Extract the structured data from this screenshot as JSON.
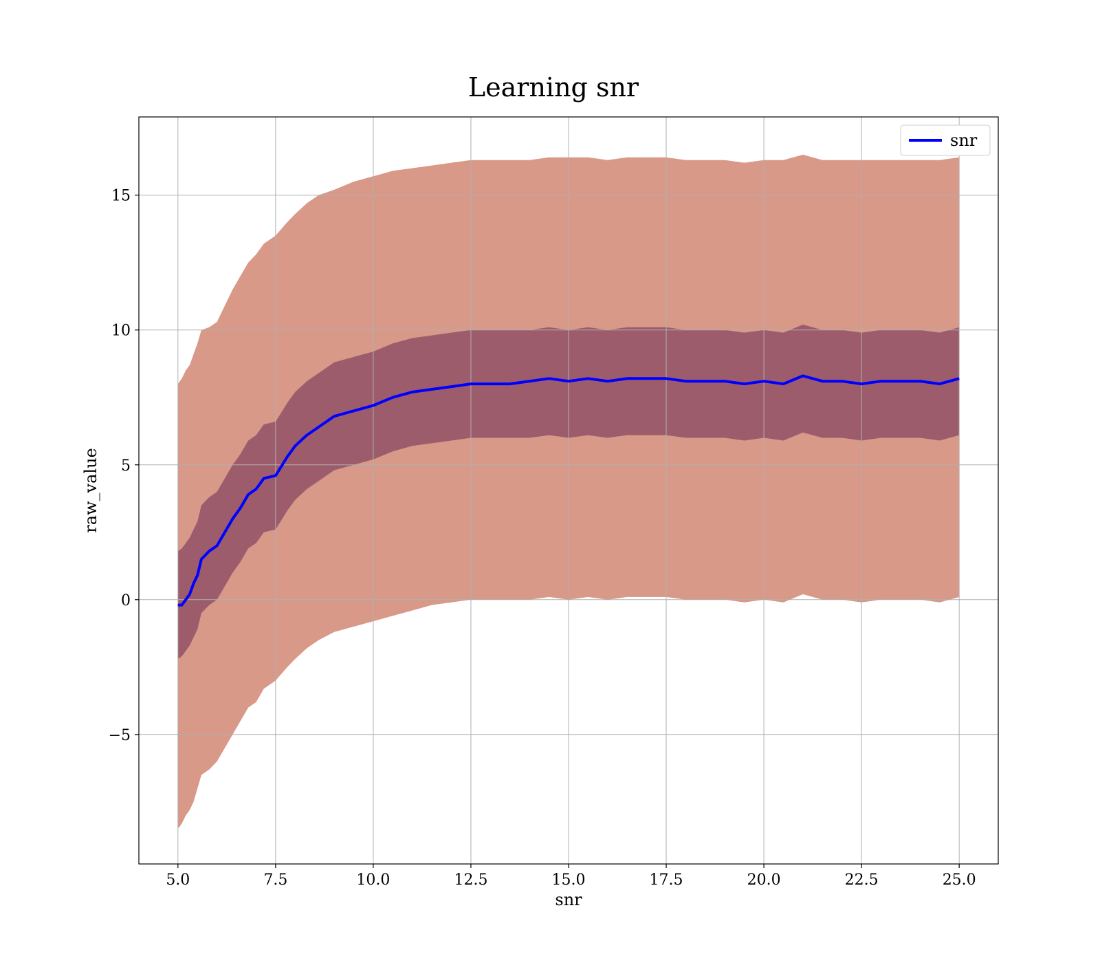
{
  "chart_data": {
    "type": "line",
    "title": "Learning snr",
    "xlabel": "snr",
    "ylabel": "raw_value",
    "xlim": [
      4.0,
      26.0
    ],
    "ylim": [
      -9.8,
      17.9
    ],
    "xticks": [
      5.0,
      7.5,
      10.0,
      12.5,
      15.0,
      17.5,
      20.0,
      22.5,
      25.0
    ],
    "xtick_labels": [
      "5.0",
      "7.5",
      "10.0",
      "12.5",
      "15.0",
      "17.5",
      "20.0",
      "22.5",
      "25.0"
    ],
    "yticks": [
      -5,
      0,
      5,
      10,
      15
    ],
    "ytick_labels": [
      "−5",
      "0",
      "5",
      "10",
      "15"
    ],
    "grid": true,
    "legend": {
      "position": "top-right",
      "entries": [
        "snr"
      ]
    },
    "series": [
      {
        "name": "snr",
        "color": "#0000ff",
        "x": [
          5.0,
          5.1,
          5.2,
          5.3,
          5.4,
          5.5,
          5.6,
          5.8,
          6.0,
          6.2,
          6.4,
          6.6,
          6.8,
          7.0,
          7.2,
          7.5,
          7.8,
          8.0,
          8.3,
          8.6,
          9.0,
          9.5,
          10.0,
          10.5,
          11.0,
          11.5,
          12.0,
          12.5,
          13.0,
          13.5,
          14.0,
          14.5,
          15.0,
          15.5,
          16.0,
          16.5,
          17.0,
          17.5,
          18.0,
          18.5,
          19.0,
          19.5,
          20.0,
          20.5,
          21.0,
          21.5,
          22.0,
          22.5,
          23.0,
          23.5,
          24.0,
          24.5,
          25.0
        ],
        "values": [
          -0.2,
          -0.2,
          0.0,
          0.2,
          0.6,
          0.9,
          1.5,
          1.8,
          2.0,
          2.5,
          3.0,
          3.4,
          3.9,
          4.1,
          4.5,
          4.6,
          5.3,
          5.7,
          6.1,
          6.4,
          6.8,
          7.0,
          7.2,
          7.5,
          7.7,
          7.8,
          7.9,
          8.0,
          8.0,
          8.0,
          8.1,
          8.2,
          8.1,
          8.2,
          8.1,
          8.2,
          8.2,
          8.2,
          8.1,
          8.1,
          8.1,
          8.0,
          8.1,
          8.0,
          8.3,
          8.1,
          8.1,
          8.0,
          8.1,
          8.1,
          8.1,
          8.0,
          8.2
        ]
      }
    ],
    "bands": [
      {
        "kind": "outer",
        "color": "#ff9999",
        "x": [
          5.0,
          5.1,
          5.2,
          5.3,
          5.4,
          5.5,
          5.6,
          5.8,
          6.0,
          6.2,
          6.4,
          6.6,
          6.8,
          7.0,
          7.2,
          7.5,
          7.8,
          8.0,
          8.3,
          8.6,
          9.0,
          9.5,
          10.0,
          10.5,
          11.0,
          11.5,
          12.0,
          12.5,
          13.0,
          13.5,
          14.0,
          14.5,
          15.0,
          15.5,
          16.0,
          16.5,
          17.0,
          17.5,
          18.0,
          18.5,
          19.0,
          19.5,
          20.0,
          20.5,
          21.0,
          21.5,
          22.0,
          22.5,
          23.0,
          23.5,
          24.0,
          24.5,
          25.0
        ],
        "upper": [
          8.0,
          8.2,
          8.5,
          8.7,
          9.1,
          9.5,
          10.0,
          10.1,
          10.3,
          10.9,
          11.5,
          12.0,
          12.5,
          12.8,
          13.2,
          13.5,
          14.0,
          14.3,
          14.7,
          15.0,
          15.2,
          15.5,
          15.7,
          15.9,
          16.0,
          16.1,
          16.2,
          16.3,
          16.3,
          16.3,
          16.3,
          16.4,
          16.4,
          16.4,
          16.3,
          16.4,
          16.4,
          16.4,
          16.3,
          16.3,
          16.3,
          16.2,
          16.3,
          16.3,
          16.5,
          16.3,
          16.3,
          16.3,
          16.3,
          16.3,
          16.3,
          16.3,
          16.4
        ],
        "lower": [
          -8.5,
          -8.3,
          -8.0,
          -7.8,
          -7.5,
          -7.0,
          -6.5,
          -6.3,
          -6.0,
          -5.5,
          -5.0,
          -4.5,
          -4.0,
          -3.8,
          -3.3,
          -3.0,
          -2.5,
          -2.2,
          -1.8,
          -1.5,
          -1.2,
          -1.0,
          -0.8,
          -0.6,
          -0.4,
          -0.2,
          -0.1,
          0.0,
          0.0,
          0.0,
          0.0,
          0.1,
          0.0,
          0.1,
          0.0,
          0.1,
          0.1,
          0.1,
          0.0,
          0.0,
          0.0,
          -0.1,
          0.0,
          -0.1,
          0.2,
          0.0,
          0.0,
          -0.1,
          0.0,
          0.0,
          0.0,
          -0.1,
          0.1
        ]
      },
      {
        "kind": "inner",
        "color": "#6b2a55",
        "x": [
          5.0,
          5.1,
          5.2,
          5.3,
          5.4,
          5.5,
          5.6,
          5.8,
          6.0,
          6.2,
          6.4,
          6.6,
          6.8,
          7.0,
          7.2,
          7.5,
          7.8,
          8.0,
          8.3,
          8.6,
          9.0,
          9.5,
          10.0,
          10.5,
          11.0,
          11.5,
          12.0,
          12.5,
          13.0,
          13.5,
          14.0,
          14.5,
          15.0,
          15.5,
          16.0,
          16.5,
          17.0,
          17.5,
          18.0,
          18.5,
          19.0,
          19.5,
          20.0,
          20.5,
          21.0,
          21.5,
          22.0,
          22.5,
          23.0,
          23.5,
          24.0,
          24.5,
          25.0
        ],
        "upper": [
          1.8,
          1.9,
          2.1,
          2.3,
          2.6,
          2.9,
          3.5,
          3.8,
          4.0,
          4.5,
          5.0,
          5.4,
          5.9,
          6.1,
          6.5,
          6.6,
          7.3,
          7.7,
          8.1,
          8.4,
          8.8,
          9.0,
          9.2,
          9.5,
          9.7,
          9.8,
          9.9,
          10.0,
          10.0,
          10.0,
          10.0,
          10.1,
          10.0,
          10.1,
          10.0,
          10.1,
          10.1,
          10.1,
          10.0,
          10.0,
          10.0,
          9.9,
          10.0,
          9.9,
          10.2,
          10.0,
          10.0,
          9.9,
          10.0,
          10.0,
          10.0,
          9.9,
          10.1
        ],
        "lower": [
          -2.2,
          -2.1,
          -1.9,
          -1.7,
          -1.4,
          -1.1,
          -0.5,
          -0.2,
          0.0,
          0.5,
          1.0,
          1.4,
          1.9,
          2.1,
          2.5,
          2.6,
          3.3,
          3.7,
          4.1,
          4.4,
          4.8,
          5.0,
          5.2,
          5.5,
          5.7,
          5.8,
          5.9,
          6.0,
          6.0,
          6.0,
          6.0,
          6.1,
          6.0,
          6.1,
          6.0,
          6.1,
          6.1,
          6.1,
          6.0,
          6.0,
          6.0,
          5.9,
          6.0,
          5.9,
          6.2,
          6.0,
          6.0,
          5.9,
          6.0,
          6.0,
          6.0,
          5.9,
          6.1
        ]
      }
    ]
  }
}
